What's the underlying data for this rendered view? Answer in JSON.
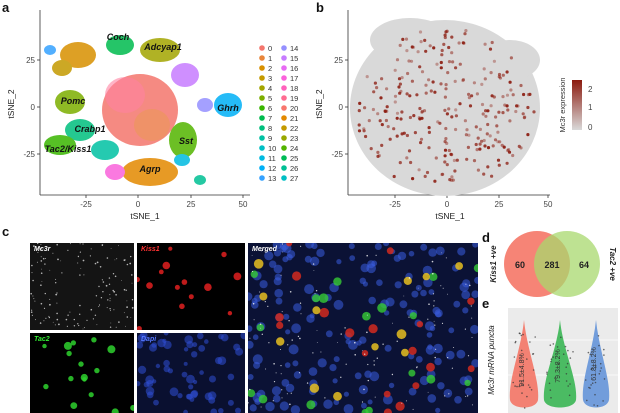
{
  "panel_letters": {
    "a": "a",
    "b": "b",
    "c": "c",
    "d": "d",
    "e": "e"
  },
  "panel_a": {
    "xlabel": "tSNE_1",
    "ylabel": "tSNE_2",
    "x_ticks": [
      "-25",
      "0",
      "25",
      "50"
    ],
    "y_ticks": [
      "25",
      "0",
      "-25"
    ],
    "cluster_labels": {
      "coch": "Coch",
      "adcyap1": "Adcyap1",
      "pomc": "Pomc",
      "ghrh": "Ghrh",
      "crabp1": "Crabp1",
      "tac2_kiss1": "Tac2/Kiss1",
      "sst": "Sst",
      "agrp": "Agrp"
    },
    "legend_col1": [
      "0",
      "1",
      "2",
      "3",
      "4",
      "5",
      "6",
      "7",
      "8",
      "9",
      "10",
      "11",
      "12",
      "13"
    ],
    "legend_col2": [
      "14",
      "15",
      "16",
      "17",
      "18",
      "19",
      "20",
      "21",
      "22",
      "23",
      "24",
      "25",
      "26",
      "27"
    ],
    "legend_colors_col1": [
      "#f4766d",
      "#e8853a",
      "#d89000",
      "#c49a00",
      "#a3a500",
      "#7cae00",
      "#39b600",
      "#00bb4e",
      "#00bf7d",
      "#00c1a3",
      "#00bfc4",
      "#00bae0",
      "#00b0f6",
      "#35a2ff"
    ],
    "legend_colors_col2": [
      "#9590ff",
      "#c77cff",
      "#e76bf3",
      "#fa62db",
      "#ff62bc",
      "#ff6c91",
      "#f8766d",
      "#e38900",
      "#c49a00",
      "#99a800",
      "#53b400",
      "#00bc56",
      "#00c094",
      "#00bfc4"
    ]
  },
  "panel_b": {
    "xlabel": "tSNE_1",
    "ylabel": "tSNE_2",
    "x_ticks": [
      "-25",
      "0",
      "25",
      "50"
    ],
    "y_ticks": [
      "25",
      "0",
      "-25"
    ],
    "colorbar_title": "Mc3r expression",
    "colorbar_ticks": [
      "2",
      "1",
      "0"
    ],
    "colors": {
      "high": "#8b1a0e",
      "low": "#d9d9d9"
    }
  },
  "panel_c": {
    "tiles": {
      "mc3r": "Mc3r",
      "kiss1": "Kiss1",
      "tac2": "Tac2",
      "dapi": "Dapi",
      "merged": "Merged"
    }
  },
  "panel_d": {
    "left_label": "Kiss1 +ve",
    "right_label": "Tac2 +ve",
    "left_only": "60",
    "overlap": "281",
    "right_only": "64",
    "colors": {
      "left": "#f46f5e",
      "right": "#a8d86e",
      "overlap": "#b9a050"
    }
  },
  "panel_e": {
    "ylabel": "Mc3r mRNA puncta",
    "annotations": [
      "91.5±4.8%",
      "79.3±8.2%",
      "61.8±8.2%"
    ],
    "colors": [
      "#f46f5e",
      "#2fb34b",
      "#5d8fd8"
    ]
  }
}
